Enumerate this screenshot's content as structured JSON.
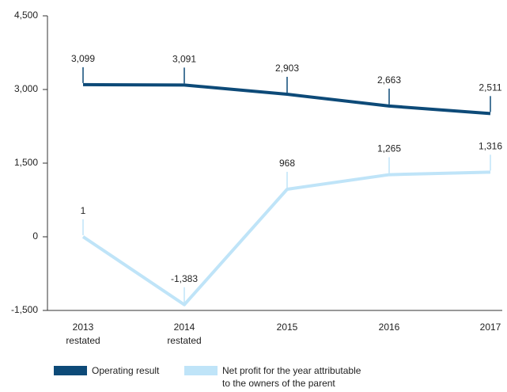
{
  "chart_data": {
    "type": "line",
    "categories": [
      "2013\nrestated",
      "2014\nrestated",
      "2015",
      "2016",
      "2017"
    ],
    "series": [
      {
        "name": "Operating result",
        "color": "#0d4a78",
        "values": [
          3099,
          3091,
          2903,
          2663,
          2511
        ],
        "value_labels": [
          "3,099",
          "3,091",
          "2,903",
          "2,663",
          "2,511"
        ]
      },
      {
        "name": "Net profit for the year attributable\nto the owners of the parent",
        "color": "#bfe4f8",
        "values": [
          1,
          -1383,
          968,
          1265,
          1316
        ],
        "value_labels": [
          "1",
          "-1,383",
          "968",
          "1,265",
          "1,316"
        ]
      }
    ],
    "ylim": [
      -1500,
      4500
    ],
    "yticks": [
      {
        "value": 4500,
        "label": "4,500"
      },
      {
        "value": 3000,
        "label": "3,000"
      },
      {
        "value": 1500,
        "label": "1,500"
      },
      0,
      {
        "value": -1500,
        "label": "-1,500"
      }
    ]
  }
}
